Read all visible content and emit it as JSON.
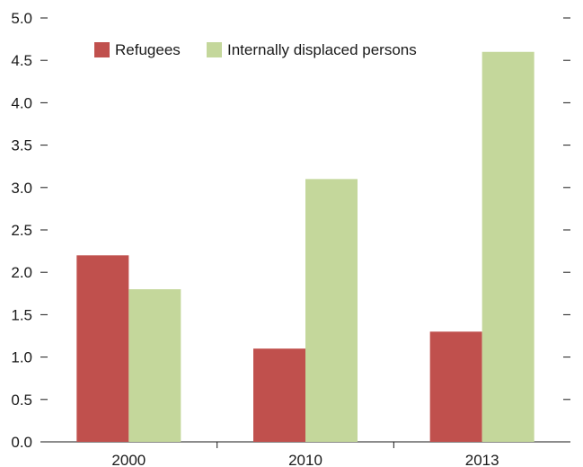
{
  "chart_data": {
    "type": "bar",
    "categories": [
      "2000",
      "2010",
      "2013"
    ],
    "series": [
      {
        "name": "Refugees",
        "values": [
          2.2,
          1.1,
          1.3
        ],
        "color": "#c0504d"
      },
      {
        "name": "Internally displaced persons",
        "values": [
          1.8,
          3.1,
          4.6
        ],
        "color": "#c4d79b"
      }
    ],
    "title": "",
    "xlabel": "",
    "ylabel": "",
    "ylim": [
      0,
      5.0
    ],
    "yticks": [
      "0.0",
      "0.5",
      "1.0",
      "1.5",
      "2.0",
      "2.5",
      "3.0",
      "3.5",
      "4.0",
      "4.5",
      "5.0"
    ],
    "grid": false,
    "legend_position": "top-left"
  }
}
